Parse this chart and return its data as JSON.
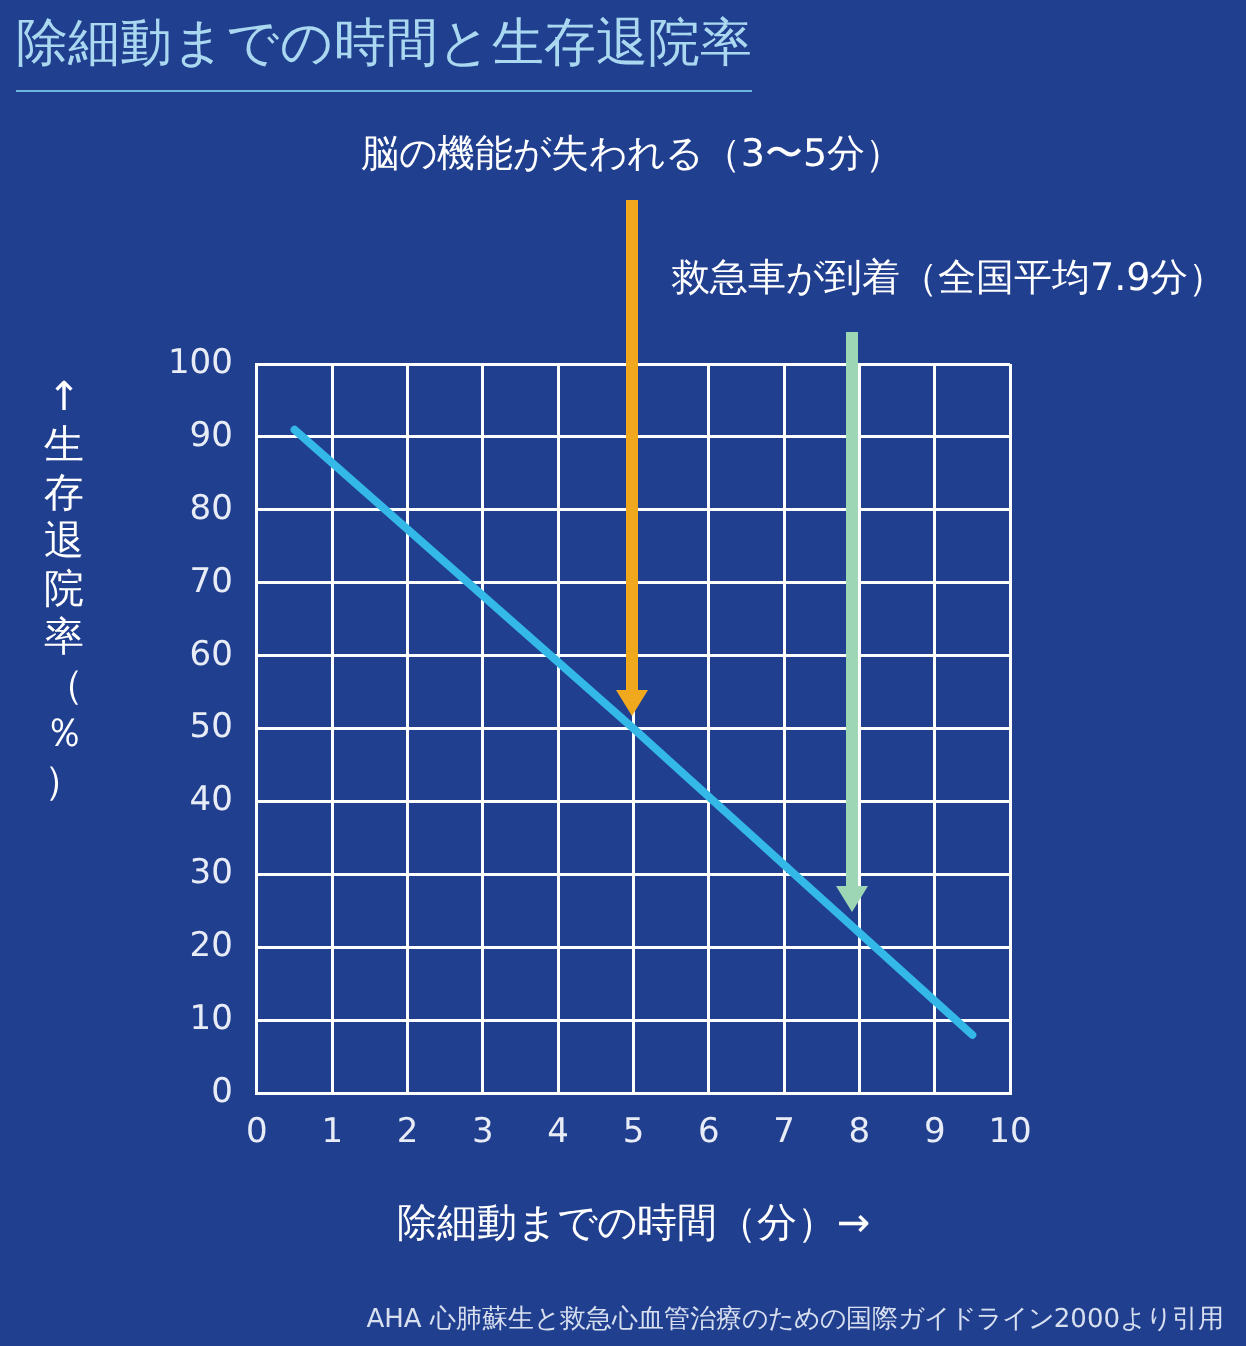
{
  "chart_data": {
    "type": "line",
    "title": "除細動までの時間と生存退院率",
    "xlabel": "除細動までの時間（分）→",
    "ylabel": "↑生存退院率（％）",
    "x": [
      0.5,
      5,
      9.5
    ],
    "series": [
      {
        "color": "#33b8e8",
        "values": [
          91,
          50,
          8
        ]
      }
    ],
    "xlim": [
      0,
      10
    ],
    "xticks": [
      0,
      1,
      2,
      3,
      4,
      5,
      6,
      7,
      8,
      9,
      10
    ],
    "ylim": [
      0,
      100
    ],
    "yticks": [
      0,
      10,
      20,
      30,
      40,
      50,
      60,
      70,
      80,
      90,
      100
    ],
    "grid": true,
    "legend": false,
    "marker": "none",
    "line_style": "solid",
    "annotations": [
      "脳の機能が失われる（3〜5分）",
      "救急車が到着（全国平均7.9分）",
      "AHA 心肺蘇生と救急心血管治療のための国際ガイドライン2000より引用"
    ]
  }
}
